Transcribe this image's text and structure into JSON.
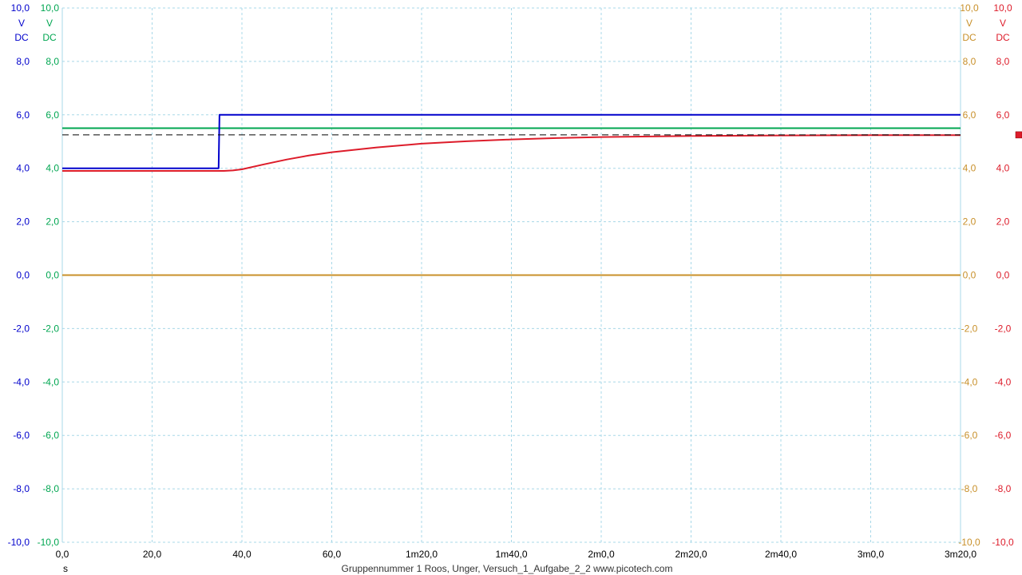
{
  "chart_data": {
    "type": "line",
    "x_unit": "s",
    "x_ticks": [
      "0,0",
      "20,0",
      "40,0",
      "60,0",
      "1m20,0",
      "1m40,0",
      "2m0,0",
      "2m20,0",
      "2m40,0",
      "3m0,0",
      "3m20,0"
    ],
    "xlim": [
      0,
      200
    ],
    "ylim": [
      -10,
      10
    ],
    "y_ticks": [
      "10,0",
      "8,0",
      "6,0",
      "4,0",
      "2,0",
      "0,0",
      "-2,0",
      "-4,0",
      "-6,0",
      "-8,0",
      "-10,0"
    ],
    "grid": true,
    "footer": "Gruppennummer 1 Roos, Unger, Versuch_1_Aufgabe_2_2   www.picotech.com",
    "axes": [
      {
        "side": "left",
        "order": 1,
        "color": "#0000cc",
        "unit": "V",
        "coupling": "DC"
      },
      {
        "side": "left",
        "order": 2,
        "color": "#00a651",
        "unit": "V",
        "coupling": "DC"
      },
      {
        "side": "right",
        "order": 1,
        "color": "#c8902a",
        "unit": "V",
        "coupling": "DC"
      },
      {
        "side": "right",
        "order": 2,
        "color": "#dd1c2a",
        "unit": "V",
        "coupling": "DC"
      }
    ],
    "series": [
      {
        "color": "#0000cc",
        "x": [
          0,
          34.8,
          35,
          200
        ],
        "y": [
          4.0,
          4.0,
          6.0,
          6.0
        ]
      },
      {
        "color": "#00a651",
        "x": [
          0,
          200
        ],
        "y": [
          5.5,
          5.5
        ]
      },
      {
        "color": "#c8902a",
        "x": [
          0,
          200
        ],
        "y": [
          0.0,
          0.0
        ]
      },
      {
        "color": "#dd1c2a",
        "x": [
          0,
          36,
          38,
          40,
          45,
          50,
          55,
          60,
          70,
          80,
          90,
          100,
          110,
          120,
          140,
          160,
          180,
          200
        ],
        "y": [
          3.9,
          3.9,
          3.92,
          3.96,
          4.15,
          4.33,
          4.48,
          4.6,
          4.78,
          4.92,
          5.01,
          5.08,
          5.13,
          5.17,
          5.21,
          5.23,
          5.24,
          5.24
        ]
      }
    ],
    "reference_line": {
      "color": "#000000",
      "style": "dashed",
      "y": 5.25
    },
    "marker": {
      "color": "#dd1c2a",
      "y": 5.25
    }
  }
}
